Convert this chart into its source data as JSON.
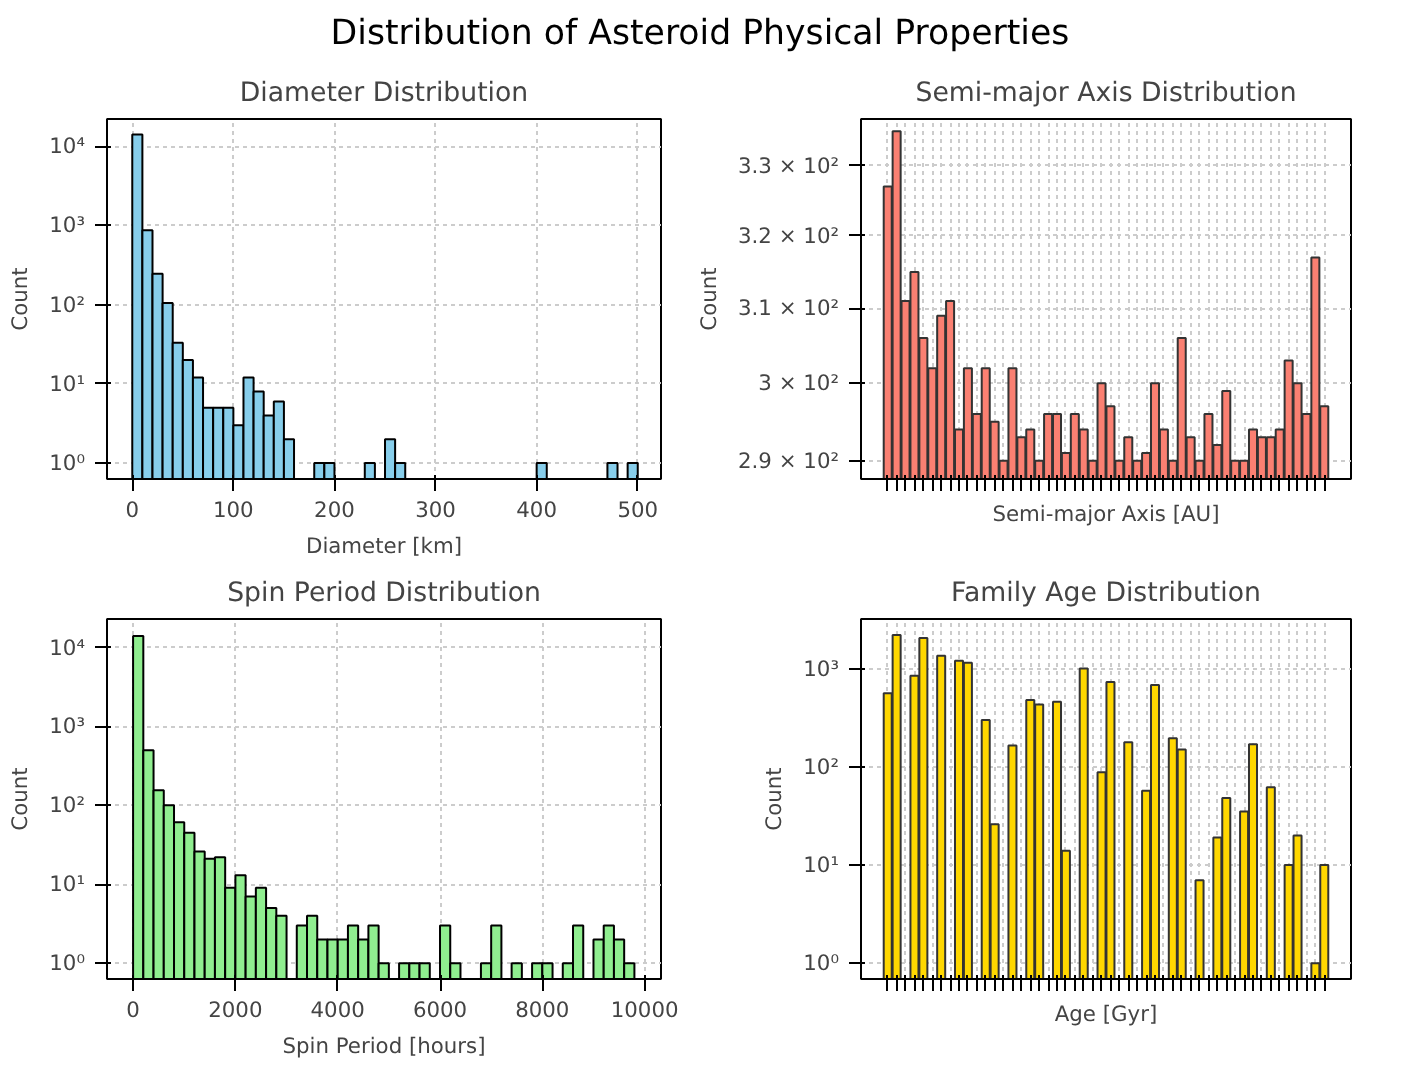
{
  "chart_data": [
    {
      "type": "other",
      "title": "Distribution of Asteroid Physical Properties"
    },
    {
      "type": "histogram",
      "title": "Diameter Distribution",
      "xlabel": "Diameter [km]",
      "ylabel": "Count",
      "color": "#87ceeb",
      "log": "y",
      "grid": true,
      "bins": [
        0,
        10,
        20,
        30,
        40,
        50,
        60,
        70,
        80,
        90,
        100,
        110,
        120,
        130,
        140,
        150,
        160,
        170,
        180,
        190,
        200,
        210,
        220,
        230,
        240,
        250,
        260,
        270,
        280,
        290,
        300,
        310,
        320,
        330,
        340,
        350,
        360,
        370,
        380,
        390,
        400,
        410,
        420,
        430,
        440,
        450,
        460,
        470,
        480,
        490,
        500
      ],
      "values": [
        14000,
        870,
        246,
        105,
        33,
        20,
        12,
        5,
        5,
        5,
        3,
        12,
        8,
        4,
        6,
        2,
        null,
        null,
        1,
        1,
        null,
        null,
        null,
        1,
        null,
        2,
        1,
        null,
        null,
        null,
        null,
        null,
        null,
        null,
        null,
        null,
        null,
        null,
        null,
        null,
        1,
        null,
        null,
        null,
        null,
        null,
        null,
        1,
        null,
        1
      ],
      "xlim": [
        -25,
        523
      ],
      "xticks": [
        0,
        100,
        200,
        300,
        400,
        500
      ],
      "ylim": [
        0.63,
        22000
      ],
      "yticks": [
        {
          "value": 1,
          "label": "10⁰"
        },
        {
          "value": 10,
          "label": "10¹"
        },
        {
          "value": 100,
          "label": "10²"
        },
        {
          "value": 1000,
          "label": "10³"
        },
        {
          "value": 10000,
          "label": "10⁴"
        }
      ]
    },
    {
      "type": "bar",
      "title": "Semi-major Axis Distribution",
      "xlabel": "Semi-major Axis [AU]",
      "ylabel": "Count",
      "color": "#fa8072",
      "log": "y",
      "grid": true,
      "categories": [
        null,
        null,
        null,
        null,
        null,
        null,
        null,
        null,
        null,
        null,
        null,
        null,
        null,
        null,
        null,
        null,
        null,
        null,
        null,
        null,
        null,
        null,
        null,
        null,
        null,
        null,
        null,
        null,
        null,
        null,
        null,
        null,
        null,
        null,
        null,
        null,
        null,
        null,
        null,
        null,
        null,
        null,
        null,
        null,
        null,
        null,
        null,
        null,
        null,
        null
      ],
      "values": [
        327,
        335,
        311,
        315,
        306,
        302,
        309,
        311,
        294,
        302,
        296,
        302,
        295,
        290,
        302,
        293,
        294,
        290,
        296,
        296,
        291,
        296,
        294,
        290,
        300,
        297,
        290,
        293,
        290,
        291,
        300,
        294,
        290,
        306,
        293,
        290,
        296,
        292,
        299,
        290,
        290,
        294,
        293,
        293,
        294,
        303,
        300,
        296,
        317,
        297
      ],
      "ylim": [
        287.7,
        336.8
      ],
      "yticks": [
        {
          "value": 290,
          "label": "2.9 × 10²"
        },
        {
          "value": 300,
          "label": "3 × 10²"
        },
        {
          "value": 310,
          "label": "3.1 × 10²"
        },
        {
          "value": 320,
          "label": "3.2 × 10²"
        },
        {
          "value": 330,
          "label": "3.3 × 10²"
        }
      ]
    },
    {
      "type": "histogram",
      "title": "Spin Period Distribution",
      "xlabel": "Spin Period [hours]",
      "ylabel": "Count",
      "color": "#90ee90",
      "log": "y",
      "grid": true,
      "bins": [
        0,
        200,
        400,
        600,
        800,
        1000,
        1200,
        1400,
        1600,
        1800,
        2000,
        2200,
        2400,
        2600,
        2800,
        3000,
        3200,
        3400,
        3600,
        3800,
        4000,
        4200,
        4400,
        4600,
        4800,
        5000,
        5200,
        5400,
        5600,
        5800,
        6000,
        6200,
        6400,
        6600,
        6800,
        7000,
        7200,
        7400,
        7600,
        7800,
        8000,
        8200,
        8400,
        8600,
        8800,
        9000,
        9200,
        9400,
        9600,
        9800
      ],
      "values": [
        14000,
        500,
        155,
        100,
        61,
        45,
        26,
        21,
        22,
        9,
        13,
        7,
        9,
        5,
        4,
        null,
        3,
        4,
        2,
        2,
        2,
        3,
        2,
        3,
        1,
        null,
        1,
        1,
        1,
        null,
        3,
        1,
        null,
        null,
        1,
        3,
        null,
        1,
        null,
        1,
        1,
        null,
        1,
        3,
        null,
        2,
        3,
        2,
        1
      ],
      "xlim": [
        -510,
        10320
      ],
      "xticks": [
        0,
        2000,
        4000,
        6000,
        8000,
        10000
      ],
      "ylim": [
        0.63,
        23000
      ],
      "yticks": [
        {
          "value": 1,
          "label": "10⁰"
        },
        {
          "value": 10,
          "label": "10¹"
        },
        {
          "value": 100,
          "label": "10²"
        },
        {
          "value": 1000,
          "label": "10³"
        },
        {
          "value": 10000,
          "label": "10⁴"
        }
      ]
    },
    {
      "type": "bar",
      "title": "Family Age Distribution",
      "xlabel": "Age [Gyr]",
      "ylabel": "Count",
      "color": "#ffd700",
      "log": "y",
      "grid": true,
      "categories": [
        null,
        null,
        null,
        null,
        null,
        null,
        null,
        null,
        null,
        null,
        null,
        null,
        null,
        null,
        null,
        null,
        null,
        null,
        null,
        null,
        null,
        null,
        null,
        null,
        null,
        null,
        null,
        null,
        null,
        null,
        null,
        null,
        null,
        null,
        null,
        null,
        null,
        null,
        null,
        null,
        null,
        null,
        null,
        null,
        null,
        null,
        null,
        null,
        null,
        null
      ],
      "values": [
        560,
        2200,
        null,
        845,
        2050,
        null,
        1350,
        null,
        1200,
        1150,
        null,
        300,
        26,
        null,
        165,
        null,
        480,
        430,
        null,
        460,
        14,
        null,
        1000,
        null,
        88,
        730,
        null,
        178,
        null,
        57,
        680,
        null,
        195,
        150,
        null,
        7,
        null,
        19,
        48,
        null,
        35,
        170,
        null,
        62,
        null,
        10,
        20,
        null,
        1,
        10
      ],
      "ylim": [
        0.69,
        3200
      ],
      "yticks": [
        {
          "value": 1,
          "label": "10⁰"
        },
        {
          "value": 10,
          "label": "10¹"
        },
        {
          "value": 100,
          "label": "10²"
        },
        {
          "value": 1000,
          "label": "10³"
        }
      ]
    }
  ]
}
